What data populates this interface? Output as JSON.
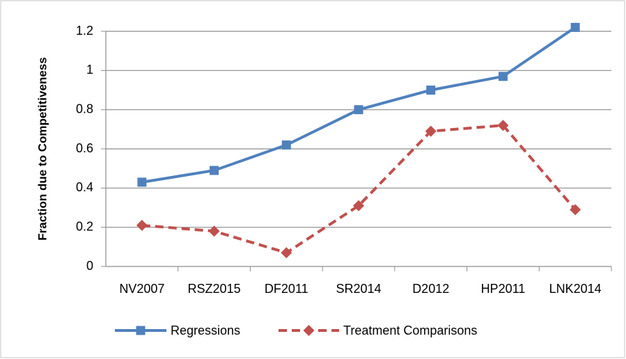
{
  "chart_data": {
    "type": "line",
    "y_label": "Fraction due to Competitiveness",
    "categories": [
      "NV2007",
      "RSZ2015",
      "DF2011",
      "SR2014",
      "D2012",
      "HP2011",
      "LNK2014"
    ],
    "series": [
      {
        "name": "Regressions",
        "color": "#4f81bd",
        "dash": false,
        "marker": "square",
        "values": [
          0.43,
          0.49,
          0.62,
          0.8,
          0.9,
          0.97,
          1.22
        ]
      },
      {
        "name": "Treatment Comparisons",
        "color": "#c0504d",
        "dash": true,
        "marker": "diamond",
        "values": [
          0.21,
          0.18,
          0.07,
          0.31,
          0.69,
          0.72,
          0.29
        ]
      }
    ],
    "ylim": [
      0,
      1.2
    ],
    "yticks": [
      0,
      0.2,
      0.4,
      0.6,
      0.8,
      1,
      1.2
    ],
    "grid": true,
    "legend": "bottom"
  }
}
